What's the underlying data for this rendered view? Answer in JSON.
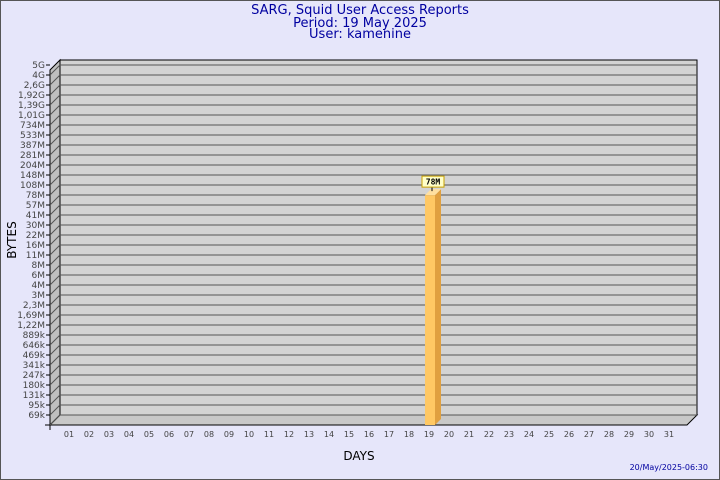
{
  "header": {
    "title": "SARG, Squid User Access Reports",
    "period": "Period: 19 May 2025",
    "user": "User: kamenine"
  },
  "footer": {
    "timestamp": "20/May/2025-06:30"
  },
  "colors": {
    "background": "#e6e6fa",
    "plot": "#d3d3d3",
    "bar_front": "#ffc864",
    "bar_side": "#e0a040",
    "title": "#0000a0"
  },
  "chart_data": {
    "type": "bar",
    "xlabel": "DAYS",
    "ylabel": "BYTES",
    "y_scale": "log",
    "y_ticks": [
      "5G",
      "4G",
      "2,6G",
      "1,92G",
      "1,39G",
      "1,01G",
      "734M",
      "533M",
      "387M",
      "281M",
      "204M",
      "148M",
      "108M",
      "78M",
      "57M",
      "41M",
      "30M",
      "22M",
      "16M",
      "11M",
      "8M",
      "6M",
      "4M",
      "3M",
      "2,3M",
      "1,69M",
      "1,22M",
      "889k",
      "646k",
      "469k",
      "341k",
      "247k",
      "180k",
      "131k",
      "95k",
      "69k"
    ],
    "categories": [
      "01",
      "02",
      "03",
      "04",
      "05",
      "06",
      "07",
      "08",
      "09",
      "10",
      "11",
      "12",
      "13",
      "14",
      "15",
      "16",
      "17",
      "18",
      "19",
      "20",
      "21",
      "22",
      "23",
      "24",
      "25",
      "26",
      "27",
      "28",
      "29",
      "30",
      "31"
    ],
    "values": [
      null,
      null,
      null,
      null,
      null,
      null,
      null,
      null,
      null,
      null,
      null,
      null,
      null,
      null,
      null,
      null,
      null,
      null,
      "78M",
      null,
      null,
      null,
      null,
      null,
      null,
      null,
      null,
      null,
      null,
      null,
      null
    ],
    "data_labels": [
      {
        "day": "19",
        "label": "78M"
      }
    ]
  }
}
